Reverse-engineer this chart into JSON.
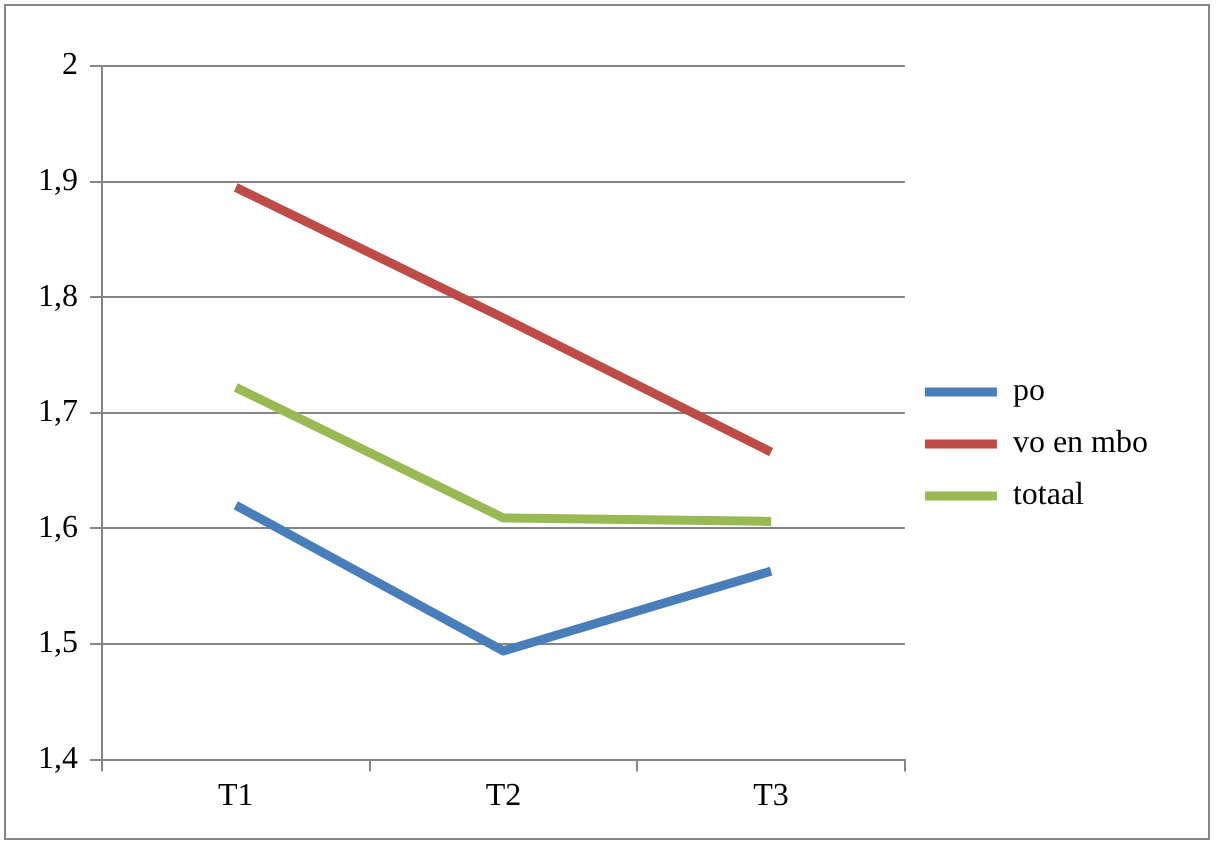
{
  "chart_data": {
    "type": "line",
    "categories": [
      "T1",
      "T2",
      "T3"
    ],
    "series": [
      {
        "name": "po",
        "color": "#4a7ebb",
        "values": [
          1.62,
          1.494,
          1.563
        ]
      },
      {
        "name": "vo en mbo",
        "color": "#be4b48",
        "values": [
          1.895,
          1.782,
          1.666
        ]
      },
      {
        "name": "totaal",
        "color": "#98b954",
        "values": [
          1.722,
          1.609,
          1.606
        ]
      }
    ],
    "ylim": [
      1.4,
      2
    ],
    "yticks": [
      {
        "value": 1.4,
        "label": "1,4"
      },
      {
        "value": 1.5,
        "label": "1,5"
      },
      {
        "value": 1.6,
        "label": "1,6"
      },
      {
        "value": 1.7,
        "label": "1,7"
      },
      {
        "value": 1.8,
        "label": "1,8"
      },
      {
        "value": 1.9,
        "label": "1,9"
      },
      {
        "value": 2,
        "label": "2"
      }
    ],
    "grid": "y",
    "legend": "right",
    "marker": "none",
    "line_style": "solid"
  }
}
